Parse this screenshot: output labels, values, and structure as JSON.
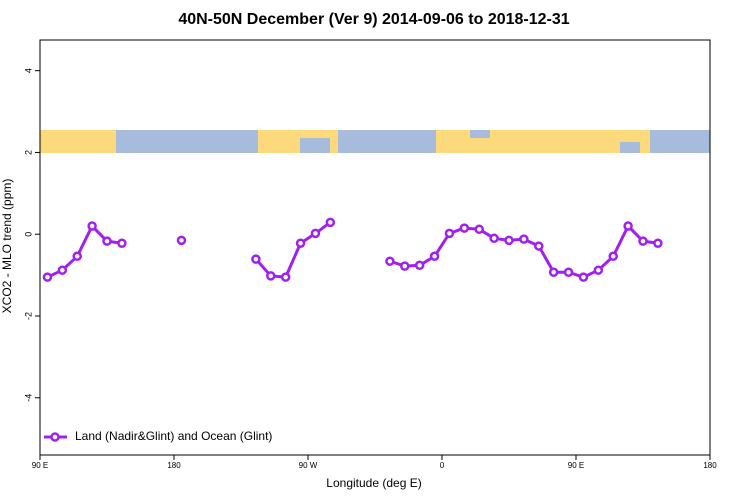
{
  "chart_data": {
    "type": "line",
    "title": "40N-50N December (Ver 9)   2014-09-06 to 2018-12-31",
    "x_label": "Longitude (deg E)",
    "y_label": "XCO2 - MLO trend (ppm)",
    "x": [
      95,
      105,
      115,
      125,
      135,
      145,
      155,
      165,
      175,
      185,
      195,
      205,
      215,
      225,
      235,
      245,
      255,
      265,
      275,
      285,
      295,
      305,
      315,
      325,
      335,
      345,
      355,
      365,
      375,
      385,
      395,
      405,
      415,
      425,
      435,
      445,
      455,
      465,
      475,
      485,
      495,
      505
    ],
    "series": [
      {
        "name": "Land (Nadir&Glint) and Ocean (Glint)",
        "color": "#a020f0",
        "values": [
          -1.05,
          -0.88,
          -0.54,
          0.2,
          -0.17,
          -0.22,
          null,
          null,
          null,
          -0.15,
          null,
          null,
          null,
          null,
          -0.61,
          -1.02,
          -1.05,
          -0.22,
          0.02,
          0.29,
          null,
          null,
          null,
          -0.66,
          -0.78,
          -0.76,
          -0.54,
          0.02,
          0.15,
          0.12,
          -0.1,
          -0.15,
          -0.12,
          -0.29,
          -0.93,
          -0.93,
          -1.05,
          -0.88,
          -0.54,
          0.2,
          -0.17,
          -0.22
        ]
      }
    ],
    "xlim": [
      90,
      540
    ],
    "xticks": [
      {
        "value": 90,
        "label": "90 E"
      },
      {
        "value": 180,
        "label": "180"
      },
      {
        "value": 270,
        "label": "90 W"
      },
      {
        "value": 360,
        "label": "0"
      },
      {
        "value": 450,
        "label": "90 E"
      },
      {
        "value": 540,
        "label": "180"
      }
    ],
    "ylim": [
      -5.4,
      4.75
    ],
    "yticks": [
      -4,
      -2,
      0,
      2,
      4
    ],
    "legend": "bottom-left"
  }
}
